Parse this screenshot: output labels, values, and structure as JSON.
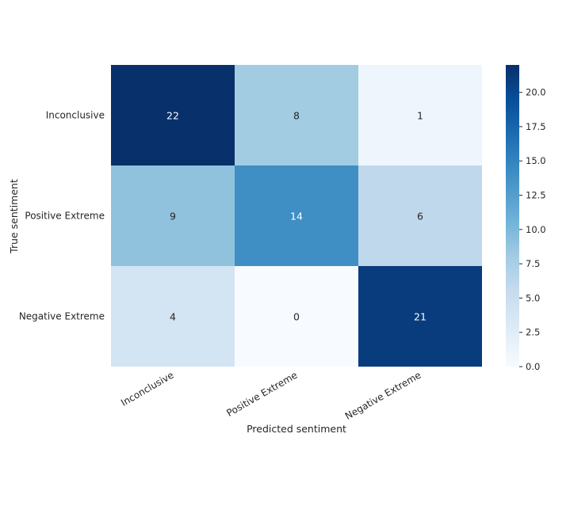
{
  "chart_data": {
    "type": "heatmap",
    "title": "",
    "xlabel": "Predicted sentiment",
    "ylabel": "True sentiment",
    "x_categories": [
      "Inconclusive",
      "Positive Extreme",
      "Negative Extreme"
    ],
    "y_categories": [
      "Inconclusive",
      "Positive Extreme",
      "Negative Extreme"
    ],
    "values": [
      [
        22,
        8,
        1
      ],
      [
        9,
        14,
        6
      ],
      [
        4,
        0,
        21
      ]
    ],
    "colormap": "Blues",
    "color_range": [
      0,
      22
    ],
    "colorbar_ticks": [
      "0.0",
      "2.5",
      "5.0",
      "7.5",
      "10.0",
      "12.5",
      "15.0",
      "17.5",
      "20.0"
    ],
    "colors": {
      "low": "#f7fbff",
      "high": "#08306b",
      "text_dark": "#262626",
      "text_light": "#ffffff"
    }
  }
}
